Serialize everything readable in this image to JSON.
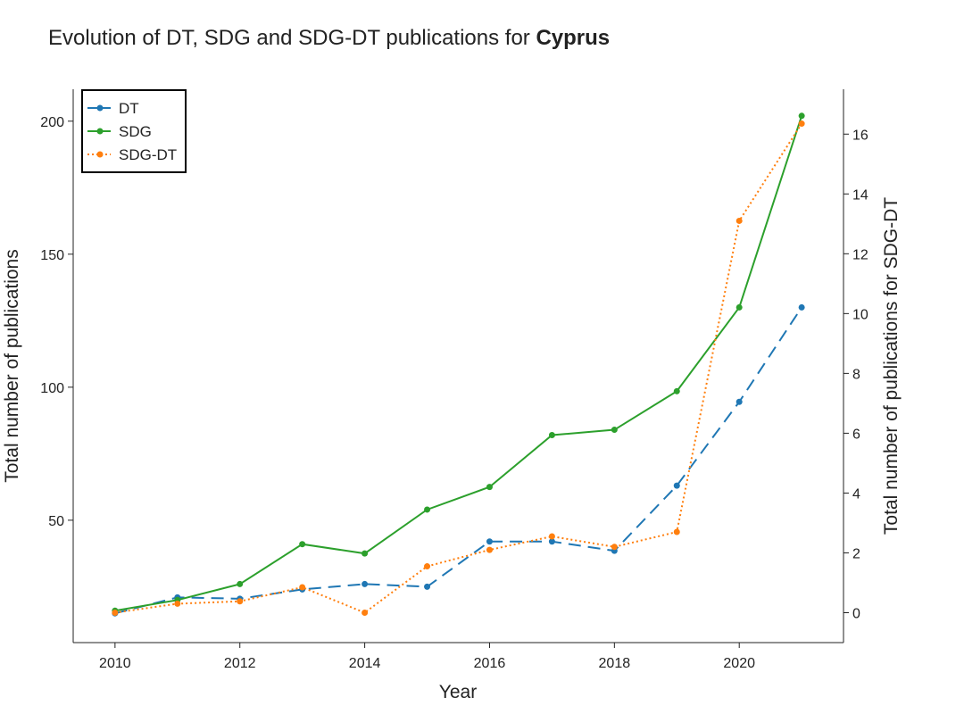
{
  "chart_data": {
    "type": "line",
    "title": "Evolution of DT, SDG and SDG-DT publications for ",
    "title_bold": "Cyprus",
    "xlabel": "Year",
    "ylabel_left": "Total number of publications",
    "ylabel_right": "Total number of publications for SDG-DT",
    "x": [
      2010,
      2011,
      2012,
      2013,
      2014,
      2015,
      2016,
      2017,
      2018,
      2019,
      2020,
      2021
    ],
    "xlim": [
      2009.33,
      2021.67
    ],
    "x_ticks": [
      2010,
      2012,
      2014,
      2016,
      2018,
      2020
    ],
    "ylim_left": [
      4,
      212
    ],
    "y_ticks_left": [
      50,
      100,
      150,
      200
    ],
    "ylim_right": [
      -1,
      17.5
    ],
    "y_ticks_right": [
      0,
      2,
      4,
      6,
      8,
      10,
      12,
      14,
      16
    ],
    "legend_position": "top-left",
    "grid": false,
    "series": [
      {
        "name": "DT",
        "axis": "left",
        "color": "#1f77b4",
        "style": "dashed",
        "values": [
          15,
          21,
          20.5,
          24,
          26,
          25,
          42,
          42,
          38.5,
          63,
          94.5,
          130
        ]
      },
      {
        "name": "SDG",
        "axis": "left",
        "color": "#2ca02c",
        "style": "solid",
        "values": [
          16,
          20,
          26,
          41,
          37.5,
          54,
          62.5,
          82,
          84,
          98.5,
          130,
          202
        ]
      },
      {
        "name": "SDG-DT",
        "axis": "right",
        "color": "#ff7f0e",
        "style": "dotted",
        "values": [
          0,
          0.3,
          0.38,
          0.85,
          0,
          1.55,
          2.1,
          2.55,
          2.2,
          2.7,
          13.1,
          16.35
        ]
      }
    ]
  }
}
